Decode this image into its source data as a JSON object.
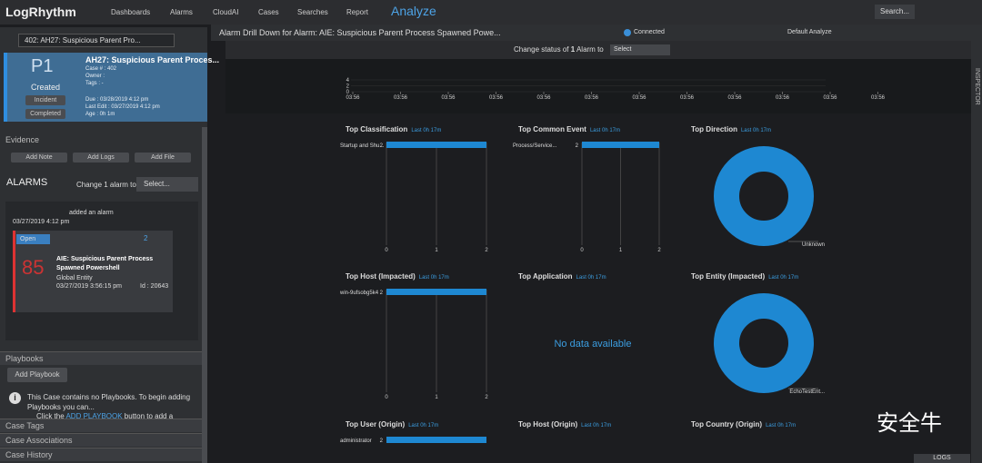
{
  "nav": {
    "brand": "LogRhythm",
    "items": [
      "Dashboards",
      "Alarms",
      "CloudAI",
      "Cases",
      "Searches",
      "Report"
    ],
    "active": "Analyze",
    "search": "Search..."
  },
  "case_selector": "402: AH27: Suspicious Parent Pro...",
  "case_card": {
    "priority": "P1",
    "status": "Created",
    "buttons": [
      "Incident",
      "Completed"
    ],
    "title": "AH27: Suspicious Parent Proces...",
    "fields": [
      "Case # : 402",
      "Owner :",
      "Tags : -"
    ],
    "dates": [
      "Due : 03/28/2019 4:12 pm",
      "Last Edit : 03/27/2019 4:12 pm",
      "Age : 0h 1m"
    ]
  },
  "evidence": {
    "title": "Evidence",
    "buttons": [
      "Add Note",
      "Add Logs",
      "Add File"
    ]
  },
  "alarms": {
    "title": "ALARMS",
    "change": "Change 1 alarm to",
    "select": "Select...",
    "activity": "added an alarm",
    "activity_date": "03/27/2019 4:12 pm",
    "card": {
      "status": "Open",
      "comments": "2",
      "score": "85",
      "title": "AIE: Suspicious Parent Process Spawned Powershell",
      "entity": "Global Entity",
      "date": "03/27/2019 3:56:15 pm",
      "id": "Id : 20643"
    }
  },
  "playbooks": {
    "title": "Playbooks",
    "button": "Add Playbook",
    "message": "This Case contains no Playbooks. To begin adding Playbooks you can...",
    "bullet": "Click the",
    "link": "ADD PLAYBOOK",
    "bullet_end": "button to add a"
  },
  "sections": [
    "Case Tags",
    "Case Associations",
    "Case History"
  ],
  "header": {
    "title": "Alarm Drill Down for Alarm: AIE: Suspicious Parent Process Spawned Powe...",
    "connected": "Connected",
    "layout": "Default Analyze"
  },
  "status_bar": {
    "prefix": "Change status of",
    "count": "1",
    "suffix": "Alarm to",
    "select": "Select"
  },
  "timeline": {
    "yticks": [
      4,
      2,
      0
    ],
    "xlabels": [
      "03:56",
      "03:56",
      "03:56",
      "03:56",
      "03:56",
      "03:56",
      "03:56",
      "03:56",
      "03:56",
      "03:56",
      "03:56",
      "03:56"
    ]
  },
  "widgets": [
    {
      "title": "Top Classification",
      "range": "Last 0h 17m",
      "type": "bar",
      "bars": [
        {
          "label": "Startup and Shu...",
          "value": 2
        }
      ],
      "ticks": [
        0,
        1,
        2
      ]
    },
    {
      "title": "Top Common Event",
      "range": "Last 0h 17m",
      "type": "bar",
      "bars": [
        {
          "label": "Process/Service...",
          "value": 2
        }
      ],
      "ticks": [
        0,
        1,
        2
      ]
    },
    {
      "title": "Top Direction",
      "range": "Last 0h 17m",
      "type": "donut",
      "label": "Unknown"
    },
    {
      "title": "Top Host (Impacted)",
      "range": "Last 0h 17m",
      "type": "bar",
      "bars": [
        {
          "label": "win-9ufsobg5k4",
          "value": 2
        }
      ],
      "ticks": [
        0,
        1,
        2
      ]
    },
    {
      "title": "Top Application",
      "range": "Last 0h 17m",
      "type": "empty",
      "message": "No data available"
    },
    {
      "title": "Top Entity (Impacted)",
      "range": "Last 0h 17m",
      "type": "donut",
      "label": "EchoTestEnt..."
    },
    {
      "title": "Top User (Origin)",
      "range": "Last 0h 17m",
      "type": "bar",
      "bars": [
        {
          "label": "administrator",
          "value": 2
        }
      ]
    },
    {
      "title": "Top Host (Origin)",
      "range": "Last 0h 17m",
      "type": "empty"
    },
    {
      "title": "Top Country (Origin)",
      "range": "Last 0h 17m",
      "type": "empty"
    }
  ],
  "inspector": "INSPECTOR",
  "logs": "LOGS",
  "watermark": "安全牛"
}
